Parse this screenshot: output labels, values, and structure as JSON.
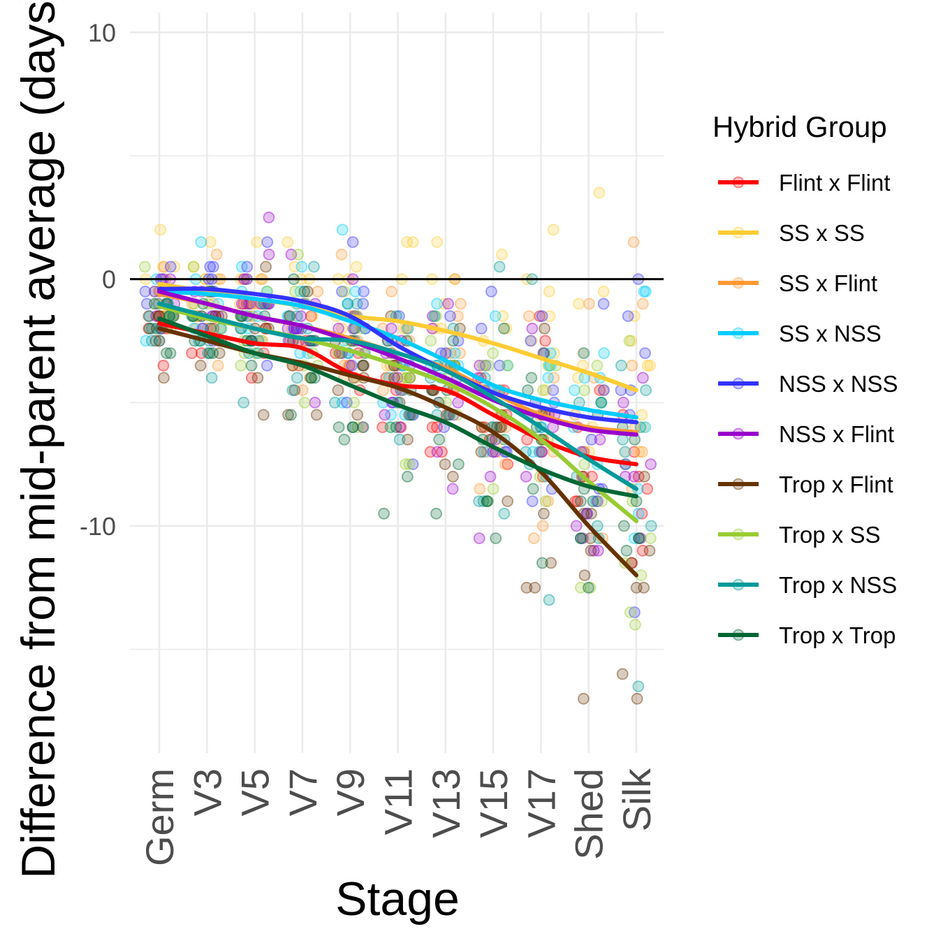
{
  "chart_data": {
    "type": "scatter",
    "title": "",
    "xlabel": "Stage",
    "ylabel": "Difference from mid-parent average (days)",
    "categories": [
      "Germ",
      "V3",
      "V5",
      "V7",
      "V9",
      "V11",
      "V13",
      "V15",
      "V17",
      "Shed",
      "Silk"
    ],
    "y_ticks": [
      10,
      0,
      -10
    ],
    "y_tick_labels": [
      "10",
      "0",
      "-10"
    ],
    "ylim": [
      -19.2,
      10.8
    ],
    "grid": true,
    "reference_line_y": 0,
    "legend": {
      "title": "Hybrid Group",
      "position": "right"
    },
    "series": [
      {
        "name": "Flint x Flint",
        "color": "#ff0000",
        "curve": [
          -1.8,
          -2.2,
          -2.6,
          -2.8,
          -3.8,
          -4.3,
          -4.5,
          -5.5,
          -6.5,
          -7.2,
          -7.5
        ]
      },
      {
        "name": "SS x SS",
        "color": "#ffcc33",
        "curve": [
          -0.2,
          -0.5,
          -0.8,
          -1.1,
          -1.5,
          -1.7,
          -2.1,
          -2.6,
          -3.2,
          -3.8,
          -4.5
        ]
      },
      {
        "name": "SS x Flint",
        "color": "#ff9933",
        "curve": [
          -0.6,
          -1.0,
          -1.5,
          -1.9,
          -2.4,
          -3.0,
          -3.6,
          -4.6,
          -5.5,
          -6.0,
          -6.2
        ]
      },
      {
        "name": "SS x NSS",
        "color": "#00ccff",
        "curve": [
          -0.5,
          -0.6,
          -0.8,
          -1.1,
          -1.7,
          -2.4,
          -3.3,
          -4.3,
          -4.9,
          -5.3,
          -5.6
        ]
      },
      {
        "name": "NSS x NSS",
        "color": "#3333ff",
        "curve": [
          -0.4,
          -0.4,
          -0.6,
          -0.9,
          -1.5,
          -2.7,
          -3.7,
          -4.6,
          -5.2,
          -5.6,
          -5.8
        ]
      },
      {
        "name": "NSS x Flint",
        "color": "#9900cc",
        "curve": [
          -0.5,
          -1.0,
          -1.5,
          -1.9,
          -2.5,
          -3.2,
          -4.0,
          -4.9,
          -5.6,
          -6.1,
          -6.3
        ]
      },
      {
        "name": "Trop x Flint",
        "color": "#663300",
        "curve": [
          -2.0,
          -2.5,
          -3.0,
          -3.4,
          -3.9,
          -4.4,
          -5.2,
          -6.2,
          -7.8,
          -10.0,
          -12.0
        ]
      },
      {
        "name": "Trop x SS",
        "color": "#99cc33",
        "curve": [
          -1.1,
          -1.6,
          -2.0,
          -2.4,
          -2.9,
          -3.5,
          -4.2,
          -5.2,
          -6.5,
          -8.2,
          -9.8
        ]
      },
      {
        "name": "Trop x NSS",
        "color": "#009999",
        "curve": [
          -1.0,
          -1.5,
          -2.0,
          -2.4,
          -2.5,
          -3.0,
          -3.7,
          -4.8,
          -6.0,
          -7.3,
          -8.5
        ]
      },
      {
        "name": "Trop x Trop",
        "color": "#006633",
        "curve": [
          -1.6,
          -2.3,
          -3.0,
          -3.5,
          -4.3,
          -5.1,
          -5.8,
          -6.8,
          -7.7,
          -8.4,
          -8.8
        ]
      }
    ]
  }
}
